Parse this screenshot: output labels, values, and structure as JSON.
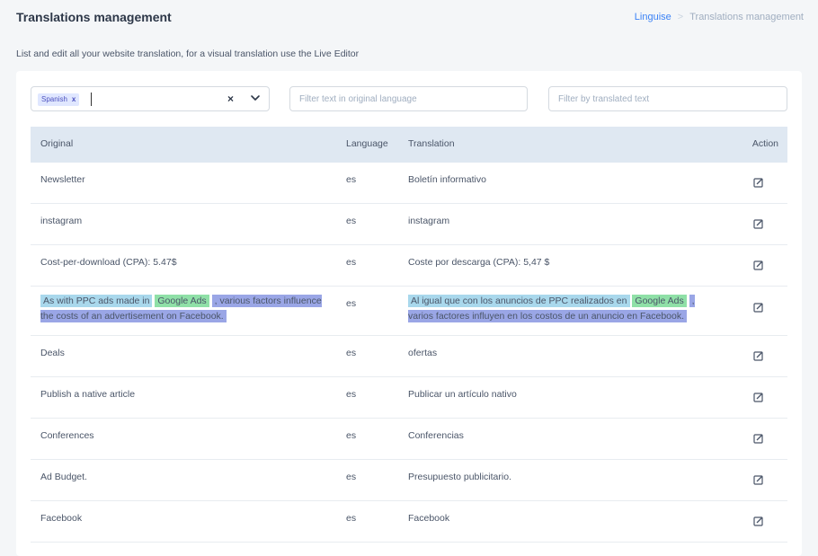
{
  "header": {
    "title": "Translations management",
    "breadcrumb": {
      "link": "Linguise",
      "separator": ">",
      "current": "Translations management"
    }
  },
  "subtitle": "List and edit all your website translation, for a visual translation use the Live Editor",
  "filters": {
    "language_tag": "Spanish",
    "tag_remove": "x",
    "clear": "×",
    "original_placeholder": "Filter text in original language",
    "translated_placeholder": "Filter by translated text"
  },
  "table": {
    "columns": {
      "original": "Original",
      "language": "Language",
      "translation": "Translation",
      "action": "Action"
    },
    "rows": [
      {
        "original": "Newsletter",
        "language": "es",
        "translation": "Boletín informativo"
      },
      {
        "original": "instagram",
        "language": "es",
        "translation": "instagram"
      },
      {
        "original": "Cost-per-download (CPA): 5.47$",
        "language": "es",
        "translation": "Coste por descarga (CPA): 5,47 $"
      },
      {
        "language": "es",
        "original_segments": [
          {
            "text": "As with PPC ads made in",
            "color": "blue"
          },
          {
            "text": "Google Ads",
            "color": "green"
          },
          {
            "text": ", various factors influence the costs of an advertisement on Facebook.",
            "color": "purple"
          }
        ],
        "translation_segments": [
          {
            "text": "Al igual que con los anuncios de PPC realizados en",
            "color": "blue"
          },
          {
            "text": "Google Ads",
            "color": "green"
          },
          {
            "text": ", varios factores influyen en los costos de un anuncio en Facebook.",
            "color": "purple"
          }
        ]
      },
      {
        "original": "Deals",
        "language": "es",
        "translation": "ofertas"
      },
      {
        "original": "Publish a native article",
        "language": "es",
        "translation": "Publicar un artículo nativo"
      },
      {
        "original": "Conferences",
        "language": "es",
        "translation": "Conferencias"
      },
      {
        "original": "Ad Budget.",
        "language": "es",
        "translation": "Presupuesto publicitario."
      },
      {
        "original": "Facebook",
        "language": "es",
        "translation": "Facebook"
      }
    ]
  },
  "colors": {
    "accent": "#3b82f6",
    "header_bg": "#dfe8f2",
    "highlight_blue": "#a9d8ec",
    "highlight_green": "#8fe0a7",
    "highlight_purple": "#9aa6e6"
  }
}
